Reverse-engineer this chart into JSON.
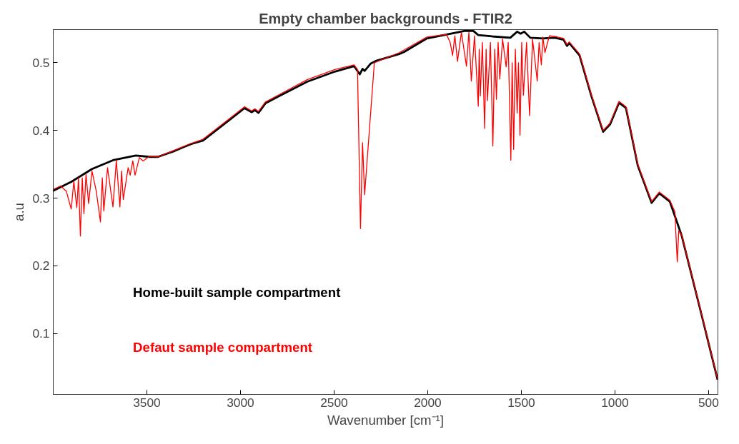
{
  "chart_data": {
    "type": "line",
    "title": "Empty chamber backgrounds - FTIR2",
    "xlabel": "Wavenumber [cm⁻¹]",
    "ylabel": "a.u",
    "xlim": [
      4000,
      450
    ],
    "ylim": [
      0.01,
      0.549
    ],
    "xticks": [
      3500,
      3000,
      2500,
      2000,
      1500,
      1000,
      500
    ],
    "yticks": [
      0.1,
      0.2,
      0.3,
      0.4,
      0.5
    ],
    "grid": false,
    "legend": "bottom left",
    "marker": "none",
    "line_style": "solid",
    "series": [
      {
        "name": "Home-built sample compartment",
        "color": "#000000",
        "x": [
          4000,
          3904,
          3793,
          3681,
          3559,
          3485,
          3441,
          3359,
          3263,
          3200,
          3052,
          2978,
          2941,
          2922,
          2904,
          2867,
          2793,
          2644,
          2496,
          2393,
          2363,
          2348,
          2337,
          2304,
          2274,
          2152,
          2126,
          2004,
          1804,
          1756,
          1730,
          1656,
          1559,
          1522,
          1504,
          1485,
          1452,
          1385,
          1322,
          1274,
          1256,
          1244,
          1189,
          1126,
          1063,
          1026,
          978,
          941,
          878,
          804,
          763,
          707,
          644,
          544,
          452
        ],
        "values": [
          0.311,
          0.324,
          0.343,
          0.356,
          0.363,
          0.361,
          0.361,
          0.369,
          0.38,
          0.385,
          0.417,
          0.433,
          0.427,
          0.43,
          0.426,
          0.44,
          0.451,
          0.472,
          0.487,
          0.495,
          0.483,
          0.491,
          0.488,
          0.499,
          0.503,
          0.513,
          0.516,
          0.536,
          0.547,
          0.547,
          0.541,
          0.539,
          0.537,
          0.546,
          0.543,
          0.546,
          0.537,
          0.536,
          0.537,
          0.534,
          0.525,
          0.529,
          0.511,
          0.451,
          0.398,
          0.409,
          0.441,
          0.433,
          0.348,
          0.293,
          0.307,
          0.295,
          0.245,
          0.135,
          0.032
        ]
      },
      {
        "name": "Defaut sample compartment",
        "color": "#ff0000",
        "x": [
          4000,
          3960,
          3930,
          3904,
          3890,
          3874,
          3865,
          3855,
          3845,
          3836,
          3825,
          3811,
          3793,
          3770,
          3748,
          3738,
          3730,
          3710,
          3681,
          3663,
          3644,
          3635,
          3626,
          3600,
          3589,
          3575,
          3563,
          3540,
          3520,
          3485,
          3441,
          3359,
          3263,
          3200,
          3052,
          2978,
          2941,
          2922,
          2904,
          2867,
          2793,
          2644,
          2496,
          2393,
          2375,
          2359,
          2348,
          2337,
          2285,
          2152,
          2004,
          1900,
          1880,
          1867,
          1855,
          1841,
          1820,
          1793,
          1780,
          1767,
          1750,
          1730,
          1725,
          1719,
          1708,
          1696,
          1688,
          1681,
          1665,
          1652,
          1642,
          1633,
          1624,
          1615,
          1600,
          1581,
          1570,
          1556,
          1549,
          1541,
          1532,
          1522,
          1515,
          1507,
          1498,
          1489,
          1472,
          1456,
          1440,
          1415,
          1405,
          1393,
          1385,
          1374,
          1350,
          1322,
          1274,
          1256,
          1244,
          1189,
          1126,
          1063,
          1026,
          978,
          941,
          878,
          804,
          763,
          707,
          680,
          674,
          667,
          659,
          644,
          544,
          452
        ],
        "values": [
          0.313,
          0.318,
          0.31,
          0.284,
          0.325,
          0.286,
          0.33,
          0.244,
          0.33,
          0.277,
          0.335,
          0.292,
          0.34,
          0.31,
          0.265,
          0.33,
          0.281,
          0.345,
          0.287,
          0.356,
          0.287,
          0.34,
          0.298,
          0.345,
          0.334,
          0.355,
          0.334,
          0.36,
          0.355,
          0.362,
          0.361,
          0.37,
          0.381,
          0.387,
          0.419,
          0.435,
          0.429,
          0.432,
          0.428,
          0.442,
          0.453,
          0.475,
          0.49,
          0.497,
          0.49,
          0.255,
          0.382,
          0.305,
          0.5,
          0.515,
          0.538,
          0.542,
          0.53,
          0.511,
          0.54,
          0.502,
          0.545,
          0.495,
          0.545,
          0.473,
          0.54,
          0.436,
          0.52,
          0.451,
          0.53,
          0.403,
          0.52,
          0.444,
          0.53,
          0.377,
          0.52,
          0.446,
          0.53,
          0.476,
          0.535,
          0.494,
          0.53,
          0.356,
          0.5,
          0.372,
          0.52,
          0.426,
          0.5,
          0.393,
          0.53,
          0.452,
          0.53,
          0.422,
          0.535,
          0.473,
          0.53,
          0.497,
          0.538,
          0.515,
          0.54,
          0.539,
          0.536,
          0.527,
          0.531,
          0.513,
          0.453,
          0.4,
          0.411,
          0.443,
          0.435,
          0.35,
          0.295,
          0.309,
          0.297,
          0.28,
          0.245,
          0.206,
          0.252,
          0.246,
          0.136,
          0.033
        ]
      }
    ]
  }
}
